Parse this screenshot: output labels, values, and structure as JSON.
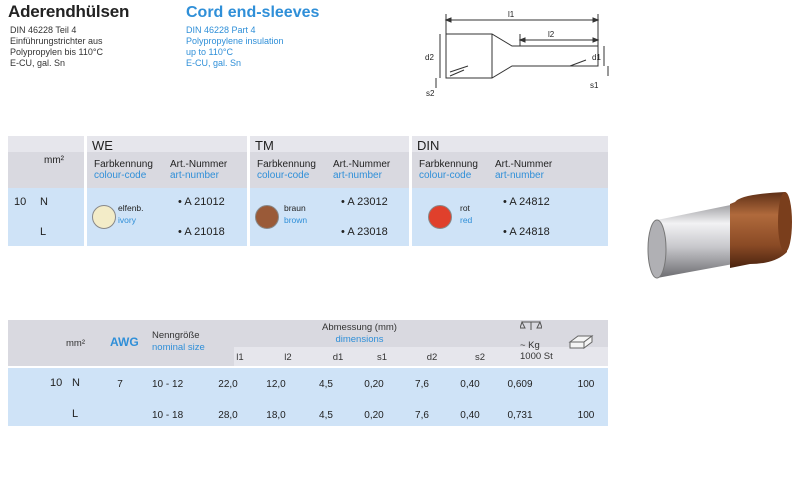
{
  "header": {
    "title_de": "Aderendhülsen",
    "title_en": "Cord end-sleeves",
    "desc_de": [
      "DIN 46228 Teil 4",
      "Einführungstrichter aus",
      "Polypropylen bis 110°C",
      "E-CU, gal. Sn"
    ],
    "desc_en": [
      "DIN 46228 Part 4",
      "Polypropylene insulation",
      "up to 110°C",
      "E-CU, gal. Sn"
    ]
  },
  "drawing": {
    "labels": {
      "l1": "l1",
      "l2": "l2",
      "d1": "d1",
      "d2": "d2",
      "s1": "s1",
      "s2": "s2"
    }
  },
  "table1": {
    "mm_label": "mm²",
    "groups": [
      {
        "title": "WE",
        "col1_de": "Farbkennung",
        "col1_en": "colour-code",
        "col2_de": "Art.-Nummer",
        "col2_en": "art-number",
        "color_de": "elfenb.",
        "color_en": "ivory",
        "swatch": "#f3ecc8",
        "arts": [
          "A 21012",
          "A 21018"
        ]
      },
      {
        "title": "TM",
        "col1_de": "Farbkennung",
        "col1_en": "colour-code",
        "col2_de": "Art.-Nummer",
        "col2_en": "art-number",
        "color_de": "braun",
        "color_en": "brown",
        "swatch": "#9a5a38",
        "arts": [
          "A 23012",
          "A 23018"
        ]
      },
      {
        "title": "DIN",
        "col1_de": "Farbkennung",
        "col1_en": "colour-code",
        "col2_de": "Art.-Nummer",
        "col2_en": "art-number",
        "color_de": "rot",
        "color_en": "red",
        "swatch": "#e0402c",
        "arts": [
          "A 24812",
          "A 24818"
        ]
      }
    ],
    "rows": [
      {
        "size": "10",
        "type": "N"
      },
      {
        "size": "",
        "type": "L"
      }
    ]
  },
  "table2": {
    "mm_label": "mm²",
    "awg_label": "AWG",
    "nenn_de": "Nenngröße",
    "nenn_en": "nominal size",
    "abm_de": "Abmessung (mm)",
    "abm_en": "dimensions",
    "dims": [
      "l1",
      "l2",
      "d1",
      "s1",
      "d2",
      "s2"
    ],
    "kg_label": "~ Kg",
    "kg_sub": "1000 St",
    "rows": [
      {
        "size": "10",
        "type": "N",
        "awg": "7",
        "nenn": "10 - 12",
        "vals": [
          "22,0",
          "12,0",
          "4,5",
          "0,20",
          "7,6",
          "0,40"
        ],
        "kg": "0,609",
        "pack": "100"
      },
      {
        "size": "",
        "type": "L",
        "awg": "",
        "nenn": "10 - 18",
        "vals": [
          "28,0",
          "18,0",
          "4,5",
          "0,20",
          "7,6",
          "0,40"
        ],
        "kg": "0,731",
        "pack": "100"
      }
    ]
  }
}
